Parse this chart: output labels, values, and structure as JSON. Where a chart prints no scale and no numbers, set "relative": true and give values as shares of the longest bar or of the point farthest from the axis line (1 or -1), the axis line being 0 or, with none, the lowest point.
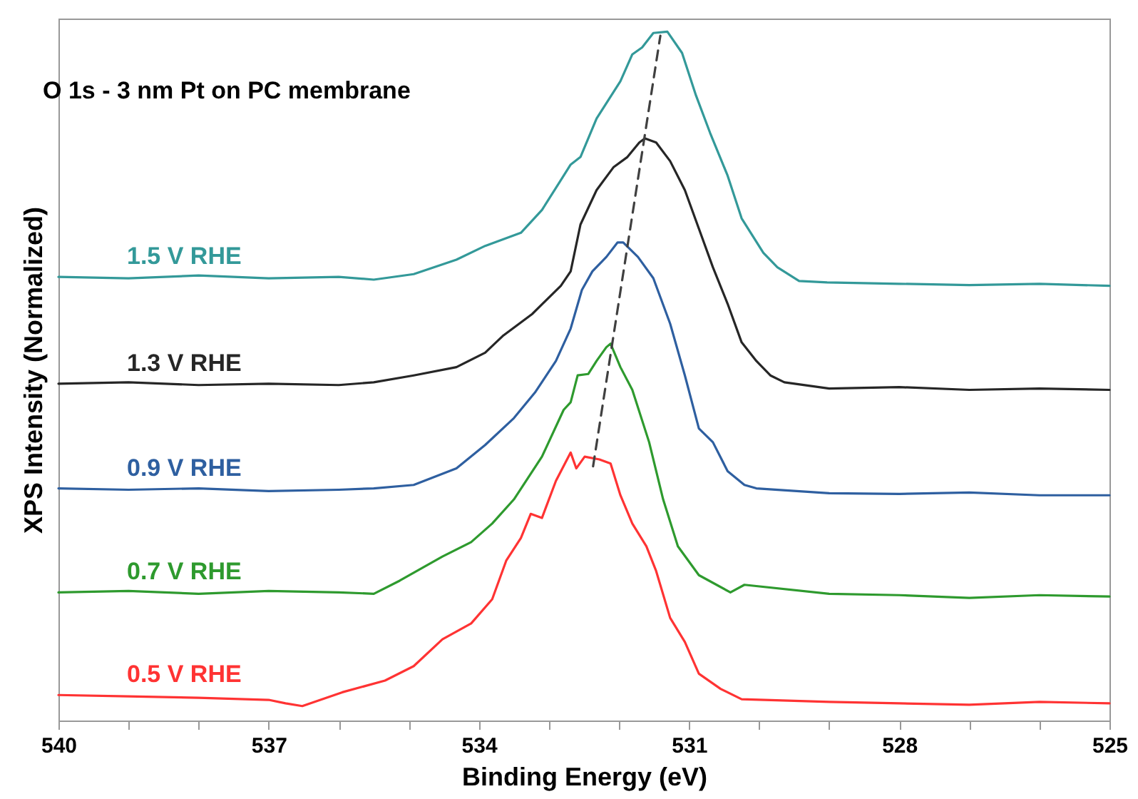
{
  "chart_data": {
    "type": "line",
    "title": "O 1s - 3 nm Pt on PC membrane",
    "xlabel": "Binding Energy (eV)",
    "ylabel": "XPS Intensity (Normalized)",
    "relative": true,
    "xlim": [
      540,
      525
    ],
    "xticks": [
      540,
      {
        "value": 539,
        "label": null
      },
      {
        "value": 538,
        "label": null
      },
      537,
      {
        "value": 536,
        "label": null
      },
      {
        "value": 535,
        "label": null
      },
      534,
      {
        "value": 533,
        "label": null
      },
      {
        "value": 532,
        "label": null
      },
      531,
      {
        "value": 530,
        "label": null
      },
      {
        "value": 529,
        "label": null
      },
      528,
      {
        "value": 527,
        "label": null
      },
      {
        "value": 526,
        "label": null
      },
      525
    ],
    "marker": "none",
    "line_style": "solid",
    "series": [
      {
        "name": "1.5 V RHE",
        "color": "#339999",
        "x": [
          540,
          539,
          538,
          537,
          536,
          535.5,
          534.93,
          534.32,
          533.91,
          533.4,
          533.1,
          532.69,
          532.55,
          532.32,
          531.98,
          531.81,
          531.67,
          531.51,
          531.31,
          531.1,
          530.9,
          530.7,
          530.45,
          530.25,
          529.94,
          529.74,
          529.43,
          529.03,
          528,
          527,
          526,
          525
        ],
        "values": [
          0.644,
          0.642,
          0.646,
          0.642,
          0.644,
          0.64,
          0.648,
          0.669,
          0.689,
          0.708,
          0.741,
          0.807,
          0.818,
          0.874,
          0.928,
          0.967,
          0.977,
          0.998,
          1.0,
          0.969,
          0.907,
          0.853,
          0.791,
          0.729,
          0.679,
          0.658,
          0.638,
          0.636,
          0.634,
          0.632,
          0.634,
          0.631
        ]
      },
      {
        "name": "1.3 V RHE",
        "color": "#262626",
        "x": [
          540,
          539,
          538,
          537,
          536,
          535.5,
          534.93,
          534.32,
          533.91,
          533.65,
          533.24,
          532.83,
          532.69,
          532.55,
          532.32,
          532.08,
          531.88,
          531.71,
          531.63,
          531.47,
          531.27,
          531.06,
          530.86,
          530.66,
          530.45,
          530.25,
          530.04,
          529.84,
          529.64,
          529,
          528,
          527,
          526,
          525
        ],
        "values": [
          0.489,
          0.491,
          0.487,
          0.489,
          0.487,
          0.491,
          0.501,
          0.513,
          0.534,
          0.559,
          0.59,
          0.631,
          0.652,
          0.72,
          0.77,
          0.803,
          0.818,
          0.839,
          0.845,
          0.839,
          0.812,
          0.77,
          0.714,
          0.658,
          0.605,
          0.549,
          0.522,
          0.501,
          0.491,
          0.482,
          0.484,
          0.48,
          0.482,
          0.48
        ]
      },
      {
        "name": "0.9 V RHE",
        "color": "#2e5fa0",
        "x": [
          540,
          539,
          538,
          537,
          536,
          535.5,
          534.93,
          534.32,
          533.91,
          533.5,
          533.2,
          532.9,
          532.69,
          532.53,
          532.38,
          532.18,
          532.02,
          531.94,
          531.73,
          531.51,
          531.27,
          531.06,
          530.86,
          530.66,
          530.45,
          530.21,
          530.04,
          529,
          528,
          527,
          526,
          525
        ],
        "values": [
          0.337,
          0.335,
          0.337,
          0.333,
          0.335,
          0.337,
          0.342,
          0.366,
          0.4,
          0.439,
          0.476,
          0.522,
          0.569,
          0.625,
          0.652,
          0.673,
          0.694,
          0.694,
          0.673,
          0.642,
          0.576,
          0.501,
          0.424,
          0.404,
          0.362,
          0.342,
          0.337,
          0.33,
          0.329,
          0.331,
          0.327,
          0.327
        ]
      },
      {
        "name": "0.7 V RHE",
        "color": "#2e9a2e",
        "x": [
          540,
          539,
          538,
          537,
          536,
          535.5,
          535.13,
          534.52,
          534.11,
          533.81,
          533.5,
          533.1,
          532.79,
          532.69,
          532.59,
          532.44,
          532.32,
          532.18,
          532.12,
          531.98,
          531.81,
          531.57,
          531.37,
          531.16,
          530.86,
          530.41,
          530.21,
          529,
          528,
          527,
          526,
          525
        ],
        "values": [
          0.186,
          0.188,
          0.184,
          0.188,
          0.186,
          0.184,
          0.203,
          0.238,
          0.259,
          0.286,
          0.321,
          0.383,
          0.451,
          0.462,
          0.501,
          0.503,
          0.522,
          0.542,
          0.547,
          0.513,
          0.48,
          0.404,
          0.321,
          0.253,
          0.211,
          0.186,
          0.197,
          0.184,
          0.182,
          0.178,
          0.182,
          0.18
        ]
      },
      {
        "name": "0.5 V RHE",
        "color": "#ff3333",
        "x": [
          540,
          539,
          538,
          537,
          536.76,
          536.52,
          535.95,
          535.34,
          534.93,
          534.52,
          534.11,
          533.81,
          533.61,
          533.4,
          533.26,
          533.1,
          532.9,
          532.69,
          532.61,
          532.49,
          532.28,
          532.12,
          531.98,
          531.81,
          531.61,
          531.47,
          531.27,
          531.06,
          530.86,
          530.55,
          530.25,
          529,
          528,
          527,
          526,
          525
        ],
        "values": [
          0.037,
          0.035,
          0.033,
          0.03,
          0.025,
          0.021,
          0.041,
          0.058,
          0.079,
          0.118,
          0.141,
          0.176,
          0.232,
          0.265,
          0.3,
          0.294,
          0.348,
          0.389,
          0.366,
          0.383,
          0.379,
          0.373,
          0.327,
          0.286,
          0.253,
          0.217,
          0.149,
          0.114,
          0.068,
          0.046,
          0.031,
          0.027,
          0.025,
          0.023,
          0.027,
          0.025
        ]
      },
      {
        "color": "#404040",
        "line_style": "dashed",
        "x": [
          532.37,
          531.41
        ],
        "values": [
          0.369,
          0.994
        ]
      }
    ]
  }
}
